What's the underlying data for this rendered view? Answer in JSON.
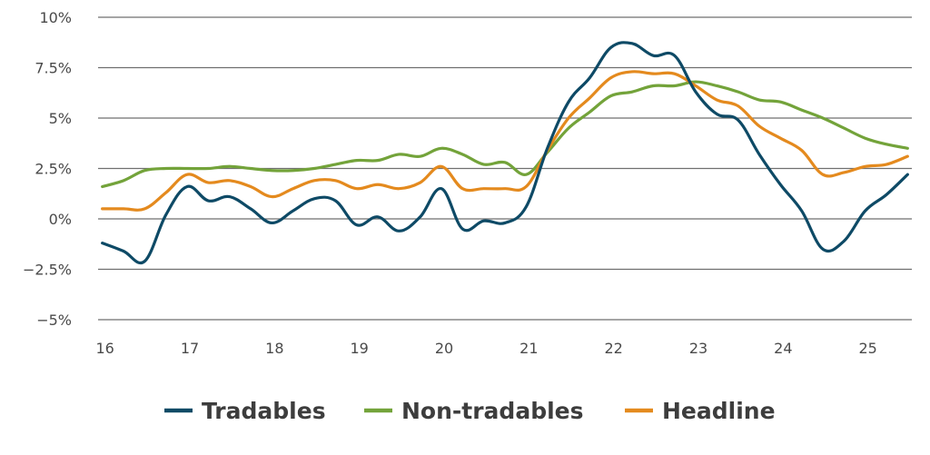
{
  "chart_data": {
    "type": "line",
    "title": "",
    "xlabel": "",
    "ylabel": "",
    "x_range": [
      16,
      25.5
    ],
    "x_ticks": [
      16,
      17,
      18,
      19,
      20,
      21,
      22,
      23,
      24,
      25
    ],
    "x_tick_labels": [
      "16",
      "17",
      "18",
      "19",
      "20",
      "21",
      "22",
      "23",
      "24",
      "25"
    ],
    "ylim": [
      -5,
      10
    ],
    "y_ticks": [
      -5,
      -2.5,
      0,
      2.5,
      5,
      7.5,
      10
    ],
    "y_tick_labels": [
      "−5%",
      "−2.5%",
      "0%",
      "2.5%",
      "5%",
      "7.5%",
      "10%"
    ],
    "grid": "horizontal",
    "legend_position": "bottom",
    "series": [
      {
        "name": "Tradables",
        "color": "#0e4a66",
        "points": [
          [
            16.0,
            -1.2
          ],
          [
            16.25,
            -1.6
          ],
          [
            16.5,
            -2.1
          ],
          [
            16.75,
            0.2
          ],
          [
            17.0,
            1.6
          ],
          [
            17.25,
            0.9
          ],
          [
            17.5,
            1.1
          ],
          [
            17.75,
            0.5
          ],
          [
            18.0,
            -0.2
          ],
          [
            18.25,
            0.4
          ],
          [
            18.5,
            1.0
          ],
          [
            18.75,
            0.9
          ],
          [
            19.0,
            -0.3
          ],
          [
            19.25,
            0.1
          ],
          [
            19.5,
            -0.6
          ],
          [
            19.75,
            0.1
          ],
          [
            20.0,
            1.5
          ],
          [
            20.25,
            -0.5
          ],
          [
            20.5,
            -0.1
          ],
          [
            20.75,
            -0.2
          ],
          [
            21.0,
            0.6
          ],
          [
            21.25,
            3.5
          ],
          [
            21.5,
            5.8
          ],
          [
            21.75,
            7.0
          ],
          [
            22.0,
            8.5
          ],
          [
            22.25,
            8.7
          ],
          [
            22.5,
            8.1
          ],
          [
            22.75,
            8.1
          ],
          [
            23.0,
            6.3
          ],
          [
            23.25,
            5.2
          ],
          [
            23.5,
            4.9
          ],
          [
            23.75,
            3.2
          ],
          [
            24.0,
            1.7
          ],
          [
            24.25,
            0.4
          ],
          [
            24.5,
            -1.5
          ],
          [
            24.75,
            -1.1
          ],
          [
            25.0,
            0.4
          ],
          [
            25.25,
            1.2
          ],
          [
            25.5,
            2.2
          ]
        ]
      },
      {
        "name": "Non-tradables",
        "color": "#73a33a",
        "points": [
          [
            16.0,
            1.6
          ],
          [
            16.25,
            1.9
          ],
          [
            16.5,
            2.4
          ],
          [
            16.75,
            2.5
          ],
          [
            17.0,
            2.5
          ],
          [
            17.25,
            2.5
          ],
          [
            17.5,
            2.6
          ],
          [
            17.75,
            2.5
          ],
          [
            18.0,
            2.4
          ],
          [
            18.25,
            2.4
          ],
          [
            18.5,
            2.5
          ],
          [
            18.75,
            2.7
          ],
          [
            19.0,
            2.9
          ],
          [
            19.25,
            2.9
          ],
          [
            19.5,
            3.2
          ],
          [
            19.75,
            3.1
          ],
          [
            20.0,
            3.5
          ],
          [
            20.25,
            3.2
          ],
          [
            20.5,
            2.7
          ],
          [
            20.75,
            2.8
          ],
          [
            21.0,
            2.2
          ],
          [
            21.25,
            3.3
          ],
          [
            21.5,
            4.5
          ],
          [
            21.75,
            5.3
          ],
          [
            22.0,
            6.1
          ],
          [
            22.25,
            6.3
          ],
          [
            22.5,
            6.6
          ],
          [
            22.75,
            6.6
          ],
          [
            23.0,
            6.8
          ],
          [
            23.25,
            6.6
          ],
          [
            23.5,
            6.3
          ],
          [
            23.75,
            5.9
          ],
          [
            24.0,
            5.8
          ],
          [
            24.25,
            5.4
          ],
          [
            24.5,
            5.0
          ],
          [
            24.75,
            4.5
          ],
          [
            25.0,
            4.0
          ],
          [
            25.25,
            3.7
          ],
          [
            25.5,
            3.5
          ]
        ]
      },
      {
        "name": "Headline",
        "color": "#e48a1e",
        "points": [
          [
            16.0,
            0.5
          ],
          [
            16.25,
            0.5
          ],
          [
            16.5,
            0.5
          ],
          [
            16.75,
            1.3
          ],
          [
            17.0,
            2.2
          ],
          [
            17.25,
            1.8
          ],
          [
            17.5,
            1.9
          ],
          [
            17.75,
            1.6
          ],
          [
            18.0,
            1.1
          ],
          [
            18.25,
            1.5
          ],
          [
            18.5,
            1.9
          ],
          [
            18.75,
            1.9
          ],
          [
            19.0,
            1.5
          ],
          [
            19.25,
            1.7
          ],
          [
            19.5,
            1.5
          ],
          [
            19.75,
            1.8
          ],
          [
            20.0,
            2.6
          ],
          [
            20.25,
            1.5
          ],
          [
            20.5,
            1.5
          ],
          [
            20.75,
            1.5
          ],
          [
            21.0,
            1.6
          ],
          [
            21.25,
            3.4
          ],
          [
            21.5,
            5.0
          ],
          [
            21.75,
            6.0
          ],
          [
            22.0,
            7.0
          ],
          [
            22.25,
            7.3
          ],
          [
            22.5,
            7.2
          ],
          [
            22.75,
            7.2
          ],
          [
            23.0,
            6.6
          ],
          [
            23.25,
            5.9
          ],
          [
            23.5,
            5.6
          ],
          [
            23.75,
            4.6
          ],
          [
            24.0,
            4.0
          ],
          [
            24.25,
            3.4
          ],
          [
            24.5,
            2.2
          ],
          [
            24.75,
            2.3
          ],
          [
            25.0,
            2.6
          ],
          [
            25.25,
            2.7
          ],
          [
            25.5,
            3.1
          ]
        ]
      }
    ]
  }
}
